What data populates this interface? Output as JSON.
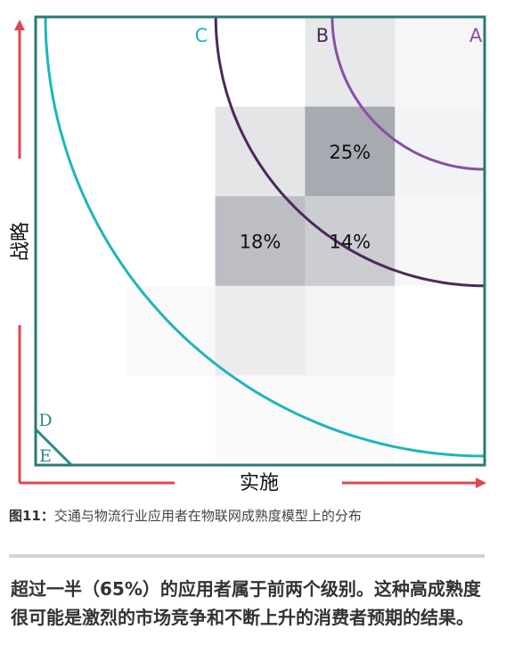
{
  "chart_data": {
    "type": "heatmap",
    "xlabel": "实施",
    "ylabel": "战略",
    "grid": false,
    "cells": [
      {
        "col": 3,
        "row": 4,
        "shade": 0.15
      },
      {
        "col": 4,
        "row": 4,
        "shade": 0.06
      },
      {
        "col": 2,
        "row": 3,
        "shade": 0.17
      },
      {
        "col": 3,
        "row": 3,
        "shade": 0.55,
        "label": "25%"
      },
      {
        "col": 4,
        "row": 3,
        "shade": 0.08
      },
      {
        "col": 2,
        "row": 2,
        "shade": 0.42,
        "label": "18%"
      },
      {
        "col": 3,
        "row": 2,
        "shade": 0.32,
        "label": "14%"
      },
      {
        "col": 4,
        "row": 2,
        "shade": 0.06
      },
      {
        "col": 1,
        "row": 1,
        "shade": 0.04
      },
      {
        "col": 2,
        "row": 1,
        "shade": 0.12
      },
      {
        "col": 3,
        "row": 1,
        "shade": 0.07
      },
      {
        "col": 2,
        "row": 0,
        "shade": 0.03
      },
      {
        "col": 3,
        "row": 0,
        "shade": 0.03
      }
    ],
    "levels": [
      {
        "name": "A",
        "radius": 1.7,
        "color": "#8a4ea6"
      },
      {
        "name": "B",
        "radius": 3.0,
        "color": "#4b2a59"
      },
      {
        "name": "C",
        "radius": 4.9,
        "color": "#1fb5bd"
      },
      {
        "name": "D",
        "radius": 0.4,
        "color": "#2a8c86"
      },
      {
        "name": "E",
        "radius": 0.0,
        "color": "#2a8c86"
      }
    ]
  },
  "colors": {
    "frame": "#2a7a74",
    "arrow": "#e0454f",
    "cell_base": "#5f6470"
  },
  "caption": {
    "label": "图11：",
    "text": "交通与物流行业应用者在物联网成熟度模型上的分布"
  },
  "summary": "超过一半（65%）的应用者属于前两个级别。这种高成熟度很可能是激烈的市场竞争和不断上升的消费者预期的结果。"
}
